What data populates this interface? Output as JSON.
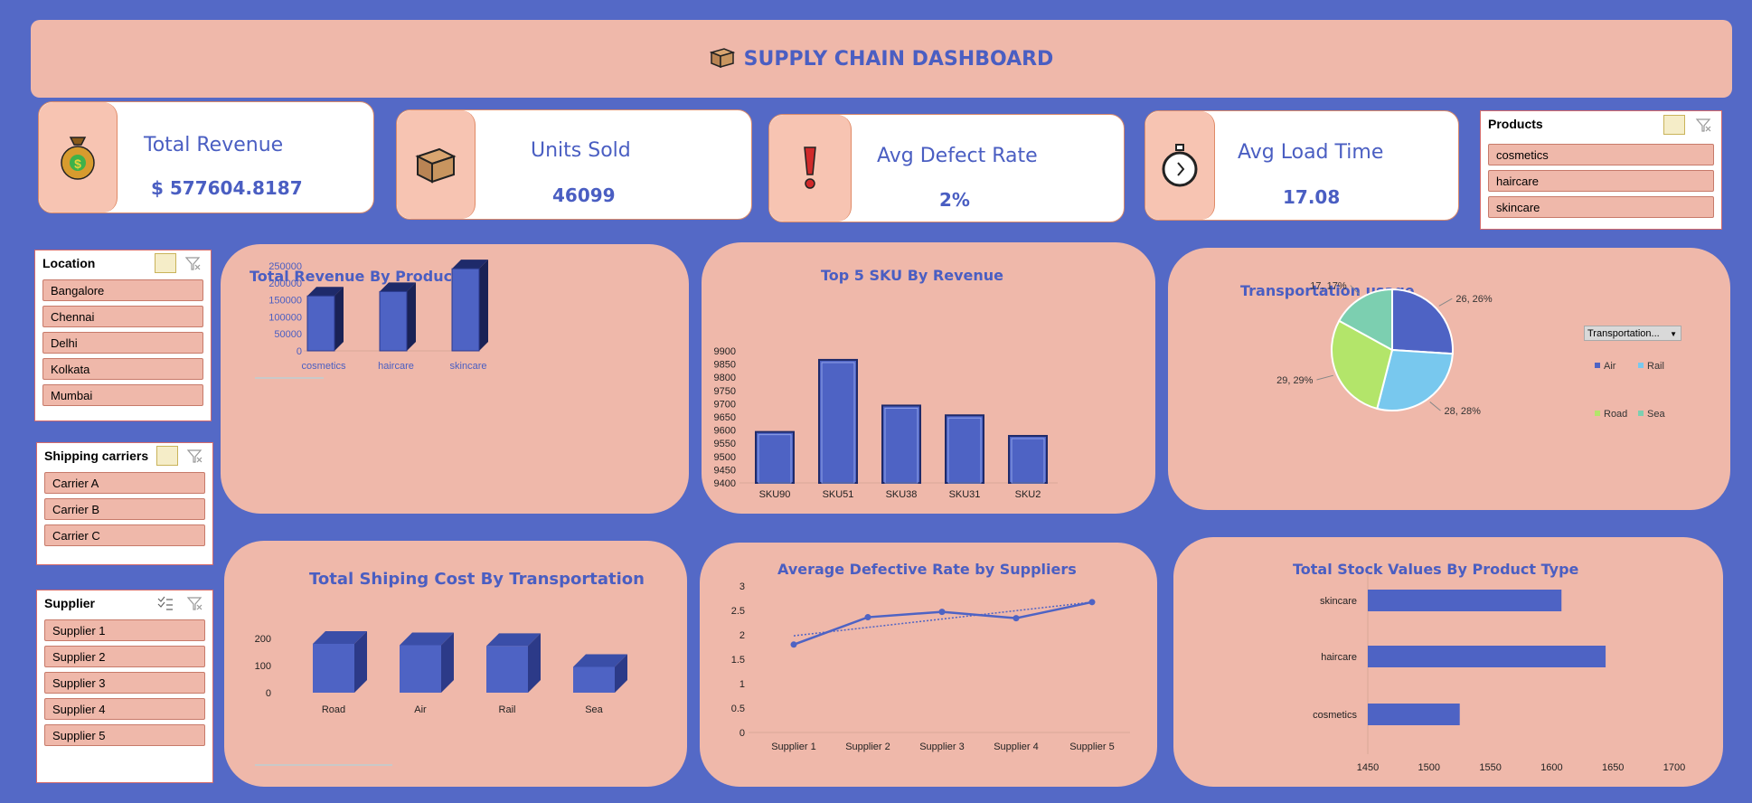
{
  "title": "SUPPLY CHAIN DASHBOARD",
  "colors": {
    "background": "#5469c6",
    "panel": "#efb8aa",
    "accent": "#4a5ec2",
    "bar": "#4e63c4"
  },
  "kpis": {
    "revenue": {
      "label": "Total Revenue",
      "value": "$ 577604.8187",
      "icon": "money-bag-icon"
    },
    "units": {
      "label": "Units Sold",
      "value": "46099",
      "icon": "box-icon"
    },
    "defect": {
      "label": "Avg Defect Rate",
      "value": "2%",
      "icon": "exclamation-icon"
    },
    "load": {
      "label": "Avg Load Time",
      "value": "17.08",
      "icon": "stopwatch-icon"
    }
  },
  "slicers": {
    "products": {
      "title": "Products",
      "items": [
        "cosmetics",
        "haircare",
        "skincare"
      ]
    },
    "location": {
      "title": "Location",
      "items": [
        "Bangalore",
        "Chennai",
        "Delhi",
        "Kolkata",
        "Mumbai"
      ]
    },
    "carriers": {
      "title": "Shipping carriers",
      "items": [
        "Carrier A",
        "Carrier B",
        "Carrier C"
      ]
    },
    "supplier": {
      "title": "Supplier",
      "items": [
        "Supplier 1",
        "Supplier 2",
        "Supplier 3",
        "Supplier 4",
        "Supplier 5"
      ]
    }
  },
  "chart_data": [
    {
      "id": "revenue_by_product",
      "type": "bar",
      "title": "Total Revenue By Product",
      "categories": [
        "cosmetics",
        "haircare",
        "skincare"
      ],
      "values": [
        161521,
        174455,
        241628
      ],
      "yticks": [
        "0",
        "50000",
        "100000",
        "150000",
        "200000",
        "250000"
      ],
      "ylim": [
        0,
        250000
      ]
    },
    {
      "id": "top5_sku",
      "type": "bar",
      "title": "Top  5 SKU By Revenue",
      "categories": [
        "SKU90",
        "SKU51",
        "SKU38",
        "SKU31",
        "SKU2"
      ],
      "values": [
        9593,
        9866,
        9693,
        9656,
        9578
      ],
      "yticks": [
        "9400",
        "9450",
        "9500",
        "9550",
        "9600",
        "9650",
        "9700",
        "9750",
        "9800",
        "9850",
        "9900"
      ],
      "ylim": [
        9400,
        9900
      ]
    },
    {
      "id": "transportation_usage",
      "type": "pie",
      "title": "Transportation usage",
      "categories": [
        "Air",
        "Rail",
        "Road",
        "Sea"
      ],
      "values": [
        26,
        28,
        29,
        17
      ],
      "labels": [
        "26, 26%",
        "28, 28%",
        "29, 29%",
        "17, 17%"
      ],
      "colors": [
        "#4e63c4",
        "#78c8ee",
        "#b3e56a",
        "#7ccfb0"
      ],
      "filter_label": "Transportation..."
    },
    {
      "id": "shipping_cost",
      "type": "bar",
      "title": "Total Shiping Cost By Transportation",
      "categories": [
        "Road",
        "Air",
        "Rail",
        "Sea"
      ],
      "values": [
        180,
        175,
        172,
        95
      ],
      "yticks": [
        "0",
        "100",
        "200"
      ],
      "ylim": [
        0,
        200
      ]
    },
    {
      "id": "defect_by_supplier",
      "type": "line",
      "title": "Average Defective  Rate by Suppliers",
      "categories": [
        "Supplier 1",
        "Supplier 2",
        "Supplier 3",
        "Supplier 4",
        "Supplier 5"
      ],
      "values": [
        1.8,
        2.36,
        2.47,
        2.34,
        2.67
      ],
      "trend": [
        1.98,
        2.67
      ],
      "yticks": [
        "0",
        "0.5",
        "1",
        "1.5",
        "2",
        "2.5",
        "3"
      ],
      "ylim": [
        0,
        3
      ]
    },
    {
      "id": "stock_by_product",
      "type": "bar",
      "title": "Total Stock Values By Product Type",
      "categories": [
        "skincare",
        "haircare",
        "cosmetics"
      ],
      "values": [
        1608,
        1644,
        1525
      ],
      "xticks": [
        "1450",
        "1500",
        "1550",
        "1600",
        "1650",
        "1700"
      ],
      "xlim": [
        1450,
        1700
      ]
    }
  ]
}
